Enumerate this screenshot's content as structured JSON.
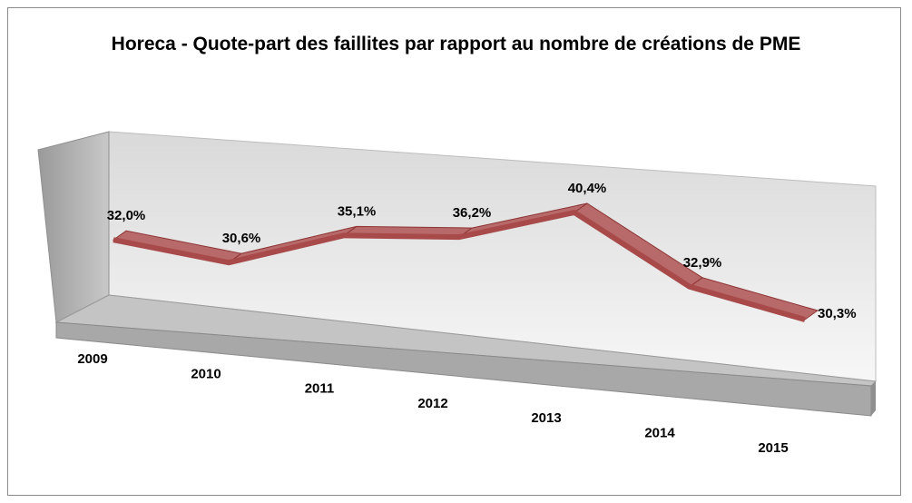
{
  "chart_data": {
    "type": "line",
    "title": "Horeca - Quote-part des faillites par rapport au nombre de créations de PME",
    "categories": [
      "2009",
      "2010",
      "2011",
      "2012",
      "2013",
      "2014",
      "2015"
    ],
    "values": [
      32.0,
      30.6,
      35.1,
      36.2,
      40.4,
      32.9,
      30.3
    ],
    "value_labels": [
      "32,0%",
      "30,6%",
      "35,1%",
      "36,2%",
      "40,4%",
      "32,9%",
      "30,3%"
    ],
    "color": "#a94a4a"
  }
}
